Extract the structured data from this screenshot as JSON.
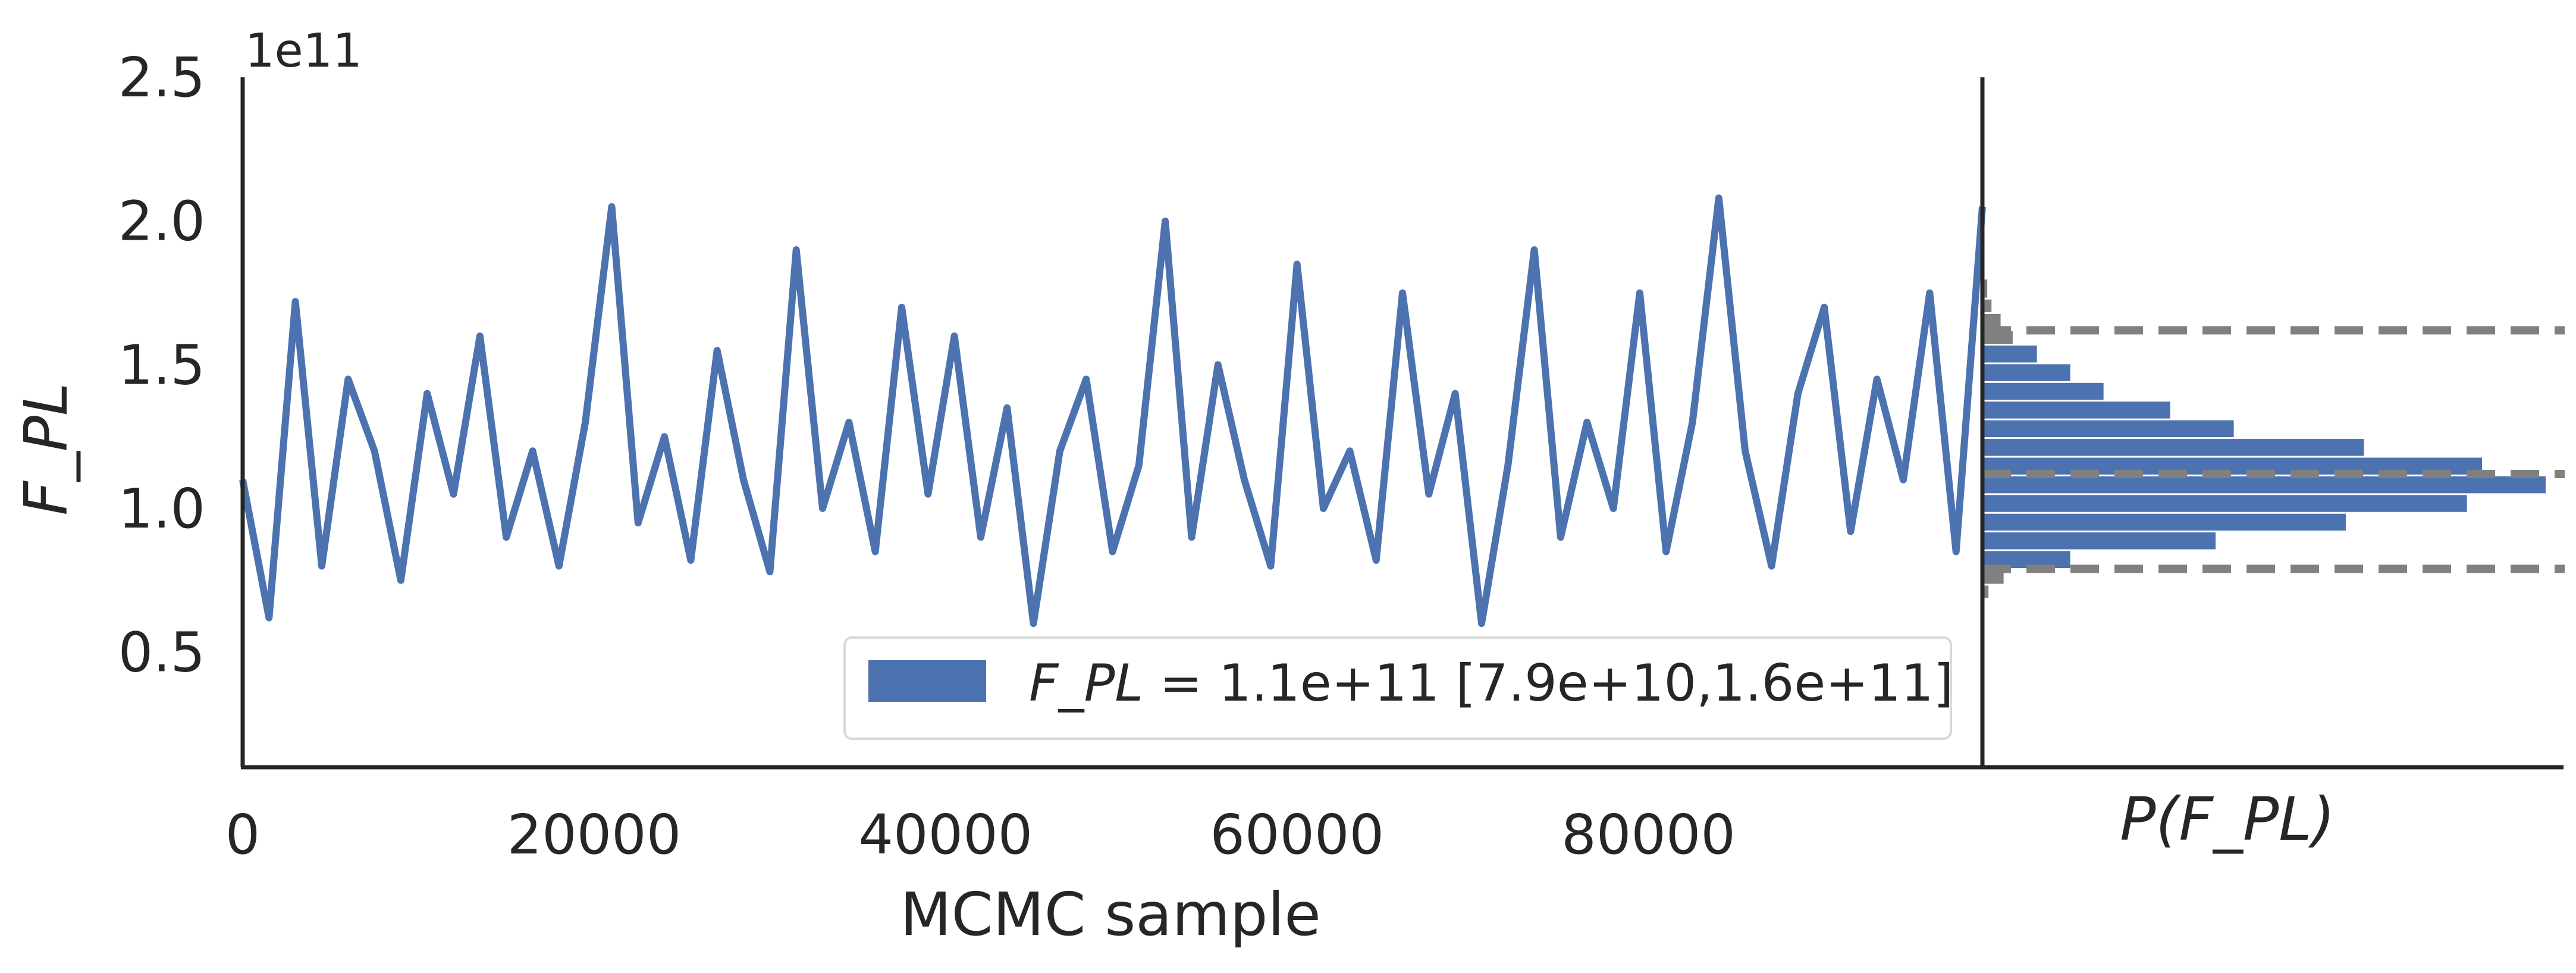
{
  "colors": {
    "trace": "#4c72b0",
    "hist_inside": "#4c72b0",
    "hist_outside": "#808080",
    "quantile_line": "#808080",
    "axis": "#262626",
    "background": "#ffffff"
  },
  "chart_data": [
    {
      "type": "line",
      "title": "",
      "xlabel": "MCMC sample",
      "ylabel": "F_PL",
      "y_offset_label": "1e11",
      "xlim": [
        0,
        99000
      ],
      "ylim": [
        0.1,
        2.5
      ],
      "y_scale_factor": 100000000000.0,
      "x_ticks": [
        0,
        20000,
        40000,
        60000,
        80000
      ],
      "x_tick_labels": [
        "0",
        "20000",
        "40000",
        "60000",
        "80000"
      ],
      "y_ticks": [
        0.5,
        1.0,
        1.5,
        2.0,
        2.5
      ],
      "y_tick_labels": [
        "0.5",
        "1.0",
        "1.5",
        "2.0",
        "2.5"
      ],
      "grid": false,
      "legend_position": "lower-right",
      "legend": {
        "italic_part": "F_PL",
        "text": " = 1.1e+11 [7.9e+10,1.6e+11]"
      },
      "series": [
        {
          "values_description_note_free": true,
          "x": [
            0,
            1500,
            3000,
            4500,
            6000,
            7500,
            9000,
            10500,
            12000,
            13500,
            15000,
            16500,
            18000,
            19500,
            21000,
            22500,
            24000,
            25500,
            27000,
            28500,
            30000,
            31500,
            33000,
            34500,
            36000,
            37500,
            39000,
            40500,
            42000,
            43500,
            45000,
            46500,
            48000,
            49500,
            51000,
            52500,
            54000,
            55500,
            57000,
            58500,
            60000,
            61500,
            63000,
            64500,
            66000,
            67500,
            69000,
            70500,
            72000,
            73500,
            75000,
            76500,
            78000,
            79500,
            81000,
            82500,
            84000,
            85500,
            87000,
            88500,
            90000,
            91500,
            93000,
            94500,
            96000,
            97500,
            99000
          ],
          "y": [
            1.1,
            0.62,
            1.72,
            0.8,
            1.45,
            1.2,
            0.75,
            1.4,
            1.05,
            1.6,
            0.9,
            1.2,
            0.8,
            1.3,
            2.05,
            0.95,
            1.25,
            0.82,
            1.55,
            1.1,
            0.78,
            1.9,
            1.0,
            1.3,
            0.85,
            1.7,
            1.05,
            1.6,
            0.9,
            1.35,
            0.6,
            1.2,
            1.45,
            0.85,
            1.15,
            2.0,
            0.9,
            1.5,
            1.1,
            0.8,
            1.85,
            1.0,
            1.2,
            0.82,
            1.75,
            1.05,
            1.4,
            0.6,
            1.15,
            1.9,
            0.9,
            1.3,
            1.0,
            1.75,
            0.85,
            1.3,
            2.08,
            1.2,
            0.8,
            1.4,
            1.7,
            0.92,
            1.45,
            1.1,
            1.75,
            0.85,
            2.05
          ]
        }
      ]
    },
    {
      "type": "bar",
      "orientation": "horizontal",
      "title": "",
      "xlabel": "P(F_PL)",
      "ylabel": "",
      "ylim": [
        0.1,
        2.5
      ],
      "bins": [
        {
          "lo": 0.685,
          "hi": 0.735,
          "count": 10,
          "in_interval": false
        },
        {
          "lo": 0.735,
          "hi": 0.79,
          "count": 35,
          "in_interval": false
        },
        {
          "lo": 0.79,
          "hi": 0.855,
          "count": 145,
          "in_interval": true
        },
        {
          "lo": 0.855,
          "hi": 0.92,
          "count": 385,
          "in_interval": true
        },
        {
          "lo": 0.92,
          "hi": 0.985,
          "count": 600,
          "in_interval": true
        },
        {
          "lo": 0.985,
          "hi": 1.05,
          "count": 800,
          "in_interval": true
        },
        {
          "lo": 1.05,
          "hi": 1.115,
          "count": 930,
          "in_interval": true
        },
        {
          "lo": 1.115,
          "hi": 1.18,
          "count": 825,
          "in_interval": true
        },
        {
          "lo": 1.18,
          "hi": 1.245,
          "count": 630,
          "in_interval": true
        },
        {
          "lo": 1.245,
          "hi": 1.31,
          "count": 415,
          "in_interval": true
        },
        {
          "lo": 1.31,
          "hi": 1.375,
          "count": 310,
          "in_interval": true
        },
        {
          "lo": 1.375,
          "hi": 1.44,
          "count": 200,
          "in_interval": true
        },
        {
          "lo": 1.44,
          "hi": 1.505,
          "count": 145,
          "in_interval": true
        },
        {
          "lo": 1.505,
          "hi": 1.57,
          "count": 90,
          "in_interval": true
        },
        {
          "lo": 1.57,
          "hi": 1.62,
          "count": 50,
          "in_interval": false
        },
        {
          "lo": 1.62,
          "hi": 1.68,
          "count": 30,
          "in_interval": false
        },
        {
          "lo": 1.68,
          "hi": 1.73,
          "count": 15,
          "in_interval": false
        },
        {
          "lo": 1.73,
          "hi": 1.8,
          "count": 8,
          "in_interval": false
        }
      ],
      "quantile_lines": [
        0.79,
        1.12,
        1.62
      ]
    }
  ]
}
